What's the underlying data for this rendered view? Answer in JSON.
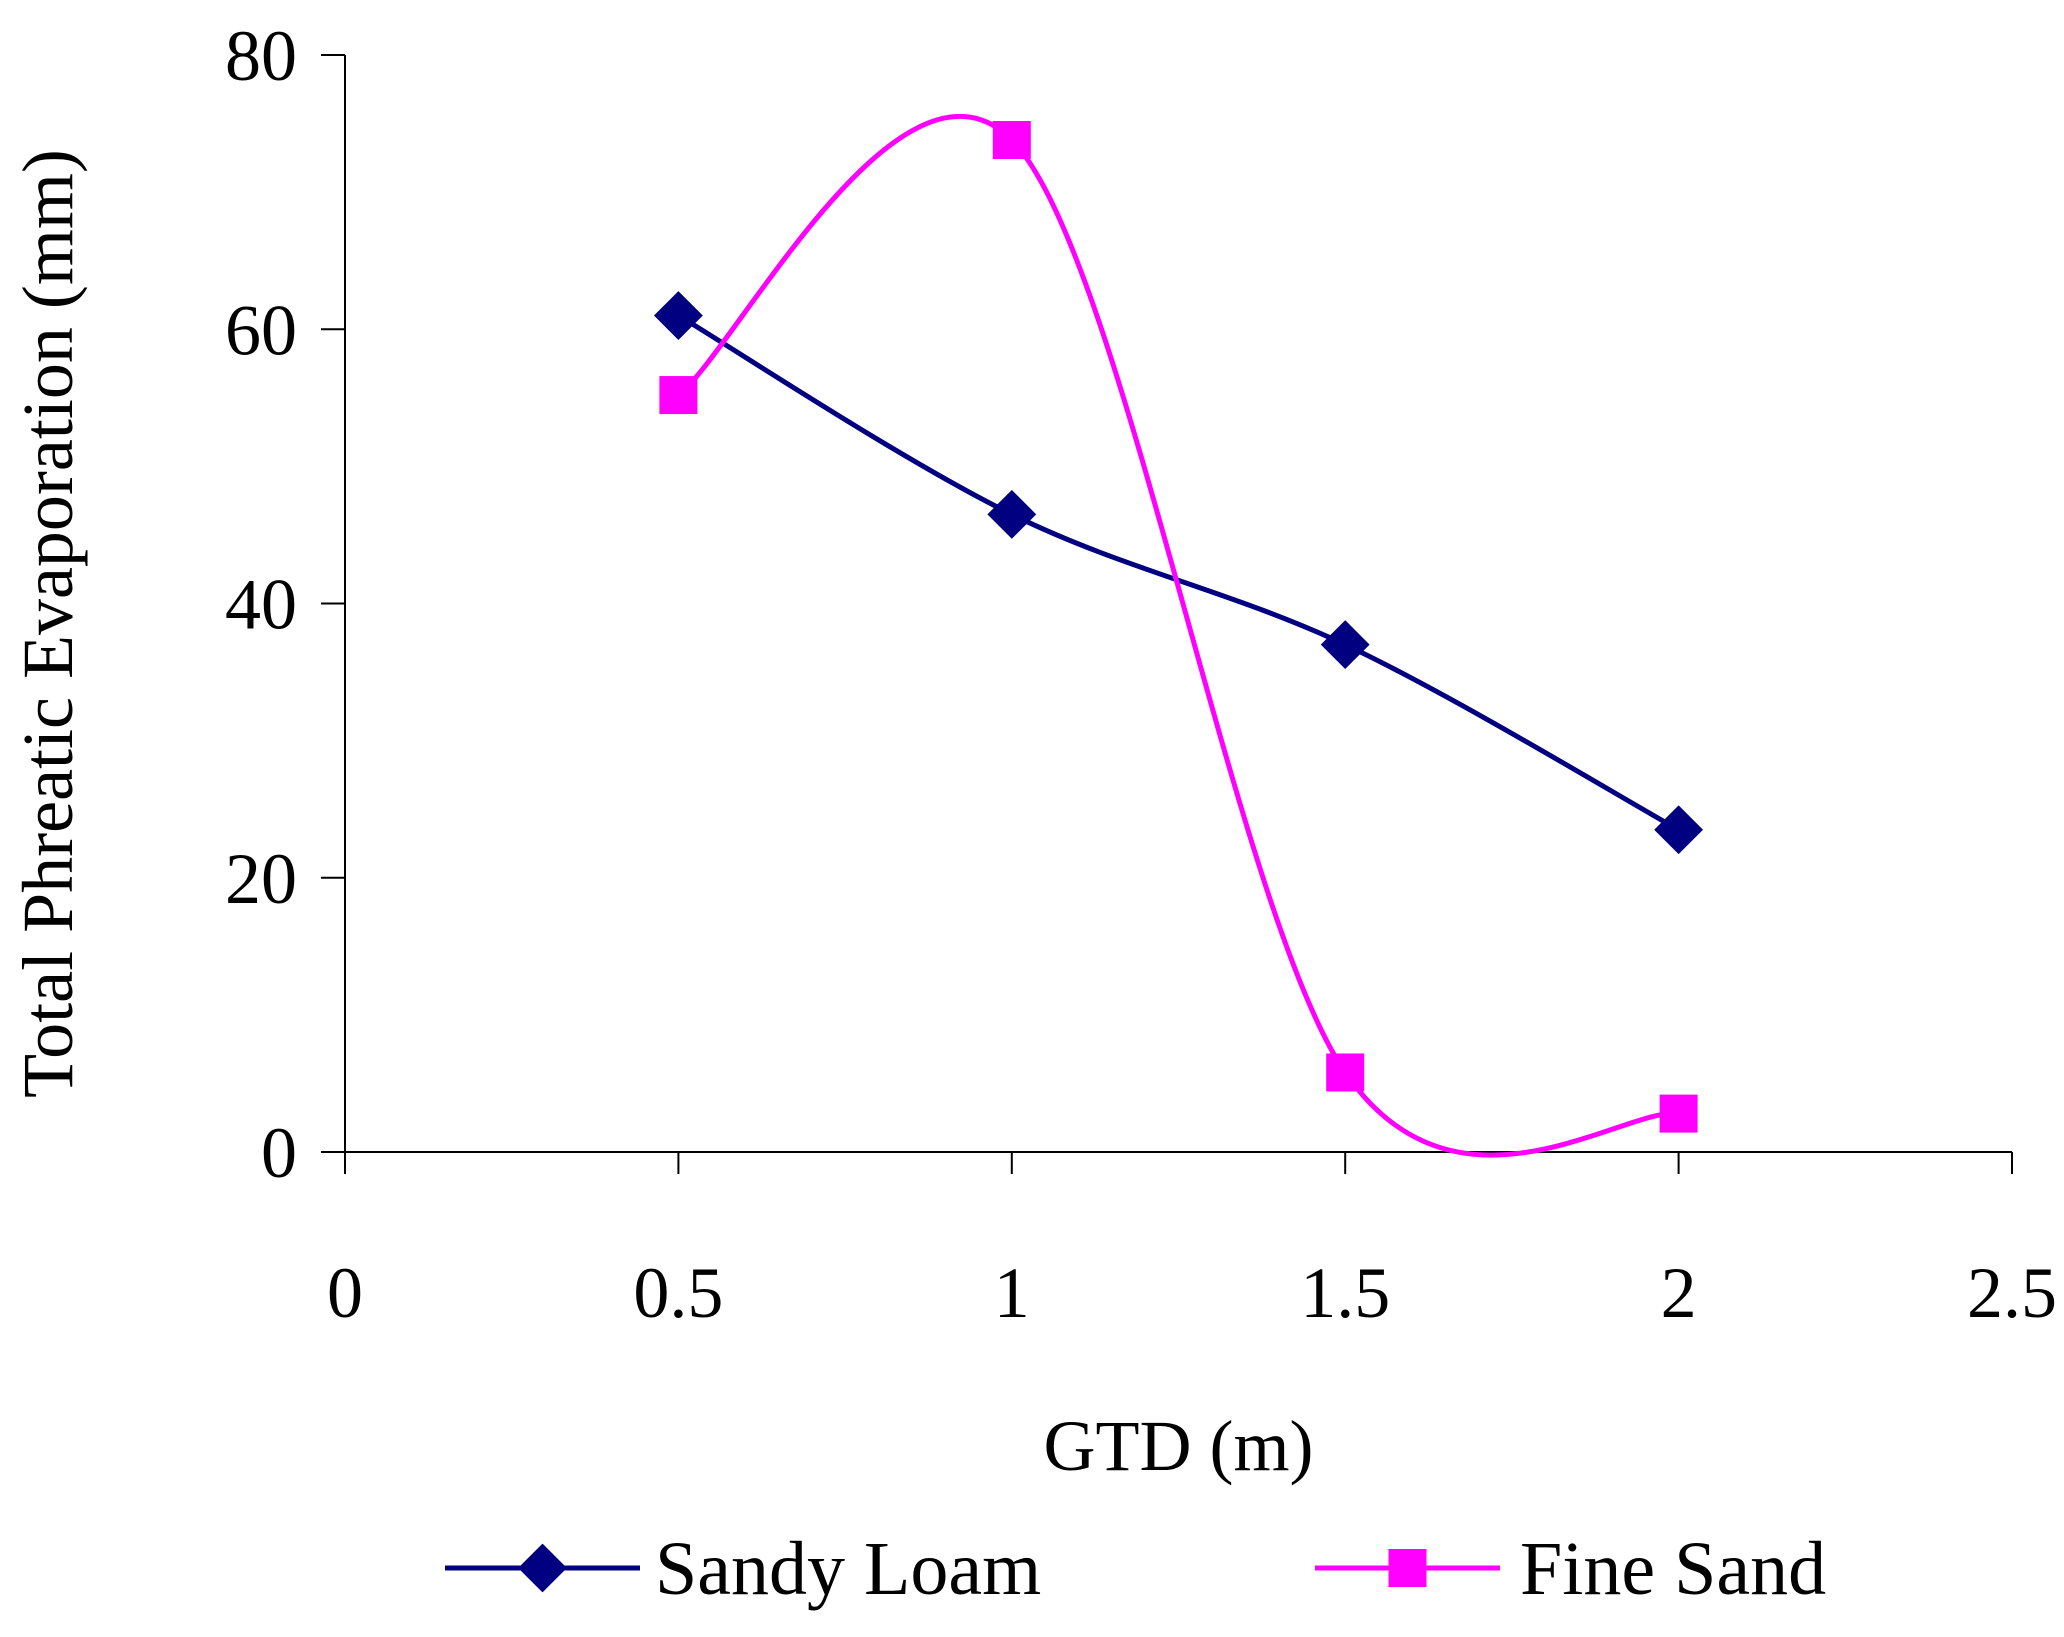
{
  "chart_data": {
    "type": "line",
    "title": "",
    "xlabel": "GTD (m)",
    "ylabel": "Total Phreatic Evaporation (mm)",
    "xlim": [
      0,
      2.5
    ],
    "ylim": [
      0,
      80
    ],
    "x_ticks": [
      0,
      0.5,
      1,
      1.5,
      2,
      2.5
    ],
    "x_tick_labels": [
      "0",
      "0.5",
      "1",
      "1.5",
      "2",
      "2.5"
    ],
    "y_ticks": [
      0,
      20,
      40,
      60,
      80
    ],
    "y_tick_labels": [
      "0",
      "20",
      "40",
      "60",
      "80"
    ],
    "grid": false,
    "legend": "bottom",
    "smooth": true,
    "series": [
      {
        "name": "Sandy Loam",
        "color": "#000080",
        "marker": "diamond",
        "x": [
          0.5,
          1,
          1.5,
          2
        ],
        "y": [
          61,
          46.5,
          37,
          23.5
        ]
      },
      {
        "name": "Fine Sand",
        "color": "#ff00ff",
        "marker": "square",
        "x": [
          0.5,
          1,
          1.5,
          2
        ],
        "y": [
          55.2,
          73.8,
          5.8,
          2.8
        ]
      }
    ]
  }
}
